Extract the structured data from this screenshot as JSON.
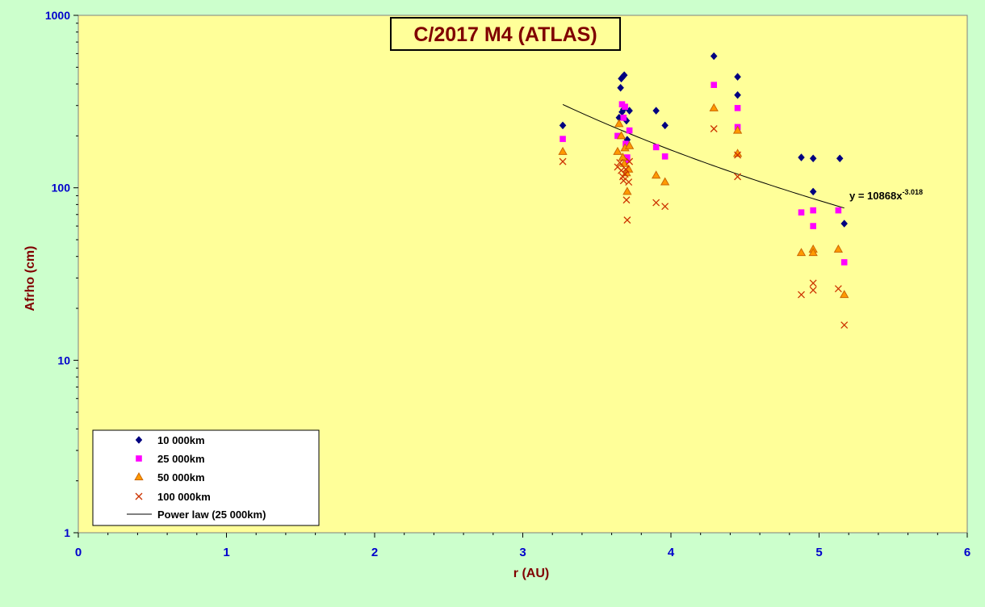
{
  "chart_data": {
    "type": "scatter",
    "title": "C/2017 M4 (ATLAS)",
    "xlabel": "r (AU)",
    "ylabel": "Afrho (cm)",
    "xlim": [
      0,
      6
    ],
    "ylim": [
      1,
      1000
    ],
    "y_scale": "log",
    "x_ticks": [
      "0",
      "1",
      "2",
      "3",
      "4",
      "5",
      "6"
    ],
    "y_ticks": [
      {
        "value": 1,
        "label": "1"
      },
      {
        "value": 10,
        "label": "10"
      },
      {
        "value": 100,
        "label": "100"
      },
      {
        "value": 1000,
        "label": "1000"
      }
    ],
    "grid": false,
    "legend_position": "bottom-left",
    "colors": {
      "plot_background": "#ffff99",
      "page_background": "#ccffcc",
      "axis_tick_labels": "#0000cc",
      "axis_titles": "#800000",
      "title_text": "#800000"
    },
    "series": [
      {
        "name": "10 000km",
        "marker": "diamond",
        "color": "#000080",
        "points": [
          [
            3.27,
            230
          ],
          [
            3.65,
            255
          ],
          [
            3.66,
            380
          ],
          [
            3.665,
            430
          ],
          [
            3.675,
            440
          ],
          [
            3.685,
            450
          ],
          [
            3.67,
            275
          ],
          [
            3.68,
            285
          ],
          [
            3.7,
            245
          ],
          [
            3.705,
            190
          ],
          [
            3.72,
            280
          ],
          [
            3.9,
            280
          ],
          [
            3.96,
            230
          ],
          [
            4.29,
            580
          ],
          [
            4.45,
            440
          ],
          [
            4.45,
            345
          ],
          [
            4.88,
            150
          ],
          [
            4.96,
            148
          ],
          [
            4.96,
            95
          ],
          [
            5.14,
            148
          ],
          [
            5.17,
            62
          ]
        ]
      },
      {
        "name": "25 000km",
        "marker": "square",
        "color": "#ff00ff",
        "points": [
          [
            3.27,
            192
          ],
          [
            3.64,
            200
          ],
          [
            3.67,
            305
          ],
          [
            3.68,
            255
          ],
          [
            3.69,
            295
          ],
          [
            3.695,
            180
          ],
          [
            3.7,
            145
          ],
          [
            3.705,
            150
          ],
          [
            3.72,
            215
          ],
          [
            3.9,
            172
          ],
          [
            3.96,
            152
          ],
          [
            4.29,
            395
          ],
          [
            4.45,
            290
          ],
          [
            4.45,
            225
          ],
          [
            4.88,
            72
          ],
          [
            4.96,
            74
          ],
          [
            4.96,
            60
          ],
          [
            5.13,
            74
          ],
          [
            5.17,
            37
          ]
        ]
      },
      {
        "name": "50 000km",
        "marker": "triangle",
        "color": "#ff9900",
        "stroke": "#cc6600",
        "points": [
          [
            3.27,
            162
          ],
          [
            3.64,
            162
          ],
          [
            3.65,
            235
          ],
          [
            3.665,
            200
          ],
          [
            3.675,
            150
          ],
          [
            3.685,
            138
          ],
          [
            3.69,
            170
          ],
          [
            3.7,
            122
          ],
          [
            3.705,
            95
          ],
          [
            3.715,
            128
          ],
          [
            3.72,
            175
          ],
          [
            3.9,
            118
          ],
          [
            3.96,
            108
          ],
          [
            4.29,
            290
          ],
          [
            4.45,
            215
          ],
          [
            4.45,
            158
          ],
          [
            4.88,
            42
          ],
          [
            4.96,
            44
          ],
          [
            4.96,
            42
          ],
          [
            5.13,
            44
          ],
          [
            5.17,
            24
          ]
        ]
      },
      {
        "name": "100 000km",
        "marker": "cross",
        "color": "#cc3300",
        "points": [
          [
            3.27,
            142
          ],
          [
            3.64,
            132
          ],
          [
            3.655,
            140
          ],
          [
            3.665,
            126
          ],
          [
            3.675,
            116
          ],
          [
            3.68,
            110
          ],
          [
            3.69,
            120
          ],
          [
            3.695,
            128
          ],
          [
            3.7,
            85
          ],
          [
            3.705,
            65
          ],
          [
            3.715,
            108
          ],
          [
            3.72,
            142
          ],
          [
            3.9,
            82
          ],
          [
            3.96,
            78
          ],
          [
            4.29,
            220
          ],
          [
            4.45,
            155
          ],
          [
            4.45,
            116
          ],
          [
            4.88,
            24
          ],
          [
            4.96,
            28
          ],
          [
            4.96,
            25.5
          ],
          [
            5.13,
            26
          ],
          [
            5.17,
            16
          ]
        ]
      }
    ],
    "trendline": {
      "name": "Power law (25 000km)",
      "coefficient": 10868,
      "exponent": -3.018,
      "x_range": [
        3.27,
        5.17
      ],
      "color": "#000000",
      "equation_prefix": "y = 10868x",
      "equation_exponent": "-3.018"
    }
  }
}
